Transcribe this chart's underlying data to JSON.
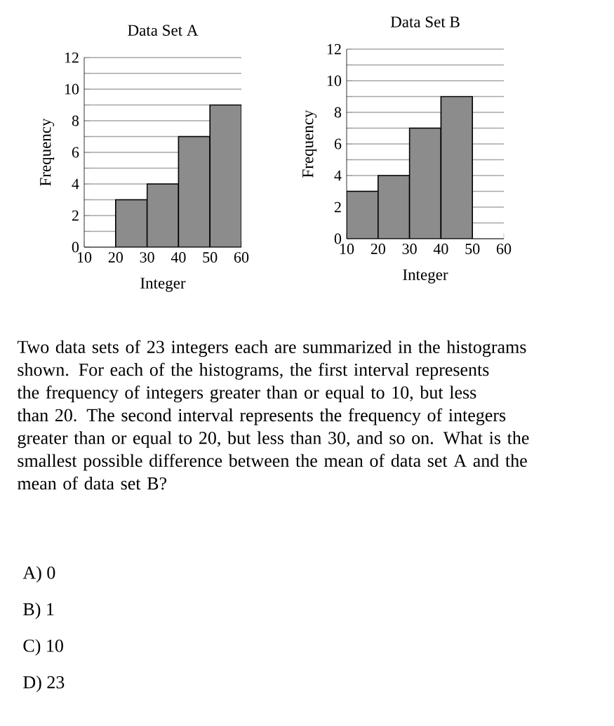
{
  "chart_data": [
    {
      "type": "histogram",
      "title": "Data Set A",
      "xlabel": "Integer",
      "ylabel": "Frequency",
      "bins": [
        20,
        30,
        40,
        50,
        60
      ],
      "values": [
        3,
        4,
        7,
        9
      ],
      "color": "#8c8c8c",
      "xlim": [
        10,
        60
      ],
      "ylim": [
        0,
        12
      ],
      "xticks": [
        10,
        20,
        30,
        40,
        50,
        60
      ],
      "yticks": [
        0,
        {
          "value": 1,
          "label": null
        },
        2,
        {
          "value": 3,
          "label": null
        },
        4,
        {
          "value": 5,
          "label": null
        },
        6,
        {
          "value": 7,
          "label": null
        },
        8,
        {
          "value": 9,
          "label": null
        },
        10,
        {
          "value": 11,
          "label": null
        },
        12
      ],
      "grid": "y"
    },
    {
      "type": "histogram",
      "title": "Data Set B",
      "xlabel": "Integer",
      "ylabel": "Frequency",
      "bins": [
        10,
        20,
        30,
        40,
        50
      ],
      "values": [
        3,
        4,
        7,
        9
      ],
      "color": "#8c8c8c",
      "xlim": [
        10,
        60
      ],
      "ylim": [
        0,
        12
      ],
      "xticks": [
        10,
        20,
        30,
        40,
        50,
        60
      ],
      "yticks": [
        0,
        {
          "value": 1,
          "label": null
        },
        2,
        {
          "value": 3,
          "label": null
        },
        4,
        {
          "value": 5,
          "label": null
        },
        6,
        {
          "value": 7,
          "label": null
        },
        8,
        {
          "value": 9,
          "label": null
        },
        10,
        {
          "value": 11,
          "label": null
        },
        12
      ],
      "grid": "y"
    },
    {
      "type": "other",
      "annotations": [
        "Two data sets of 23 integers each are summarized in the histograms shown. For each of the histograms, the first interval represents the frequency of integers greater than or equal to 10, but less than 20. The second interval represents the frequency of integers greater than or equal to 20, but less than 30, and so on. What is the smallest possible difference between the mean of data set A and the mean of data set B?",
        "A)  0",
        "B)  1",
        "C)  10",
        "D)  23"
      ]
    }
  ]
}
